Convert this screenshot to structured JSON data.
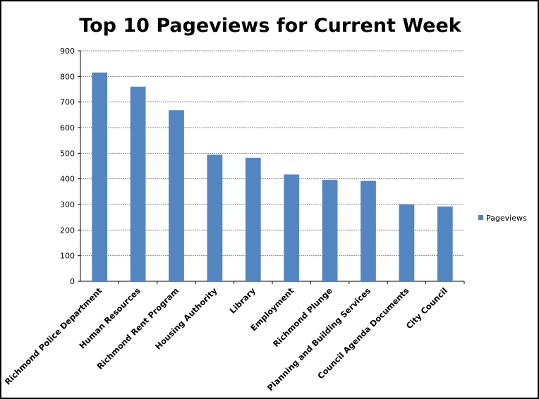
{
  "chart_data": {
    "type": "bar",
    "title": "Top 10 Pageviews for Current Week",
    "xlabel": "",
    "ylabel": "",
    "categories": [
      "Richmond Police Department",
      "Human Resources",
      "Richmond Rent Program",
      "Housing Authority",
      "Library",
      "Employment",
      "Richmond Plunge",
      "Planning and Building Services",
      "Council Agenda Documents",
      "City Council"
    ],
    "series": [
      {
        "name": "Pageviews",
        "values": [
          815,
          760,
          668,
          494,
          482,
          417,
          396,
          392,
          300,
          292
        ],
        "color": "#4f81bd"
      }
    ],
    "ylim": [
      0,
      900
    ],
    "yticks": [
      0,
      100,
      200,
      300,
      400,
      500,
      600,
      700,
      800,
      900
    ],
    "grid": true,
    "legend_position": "right"
  }
}
